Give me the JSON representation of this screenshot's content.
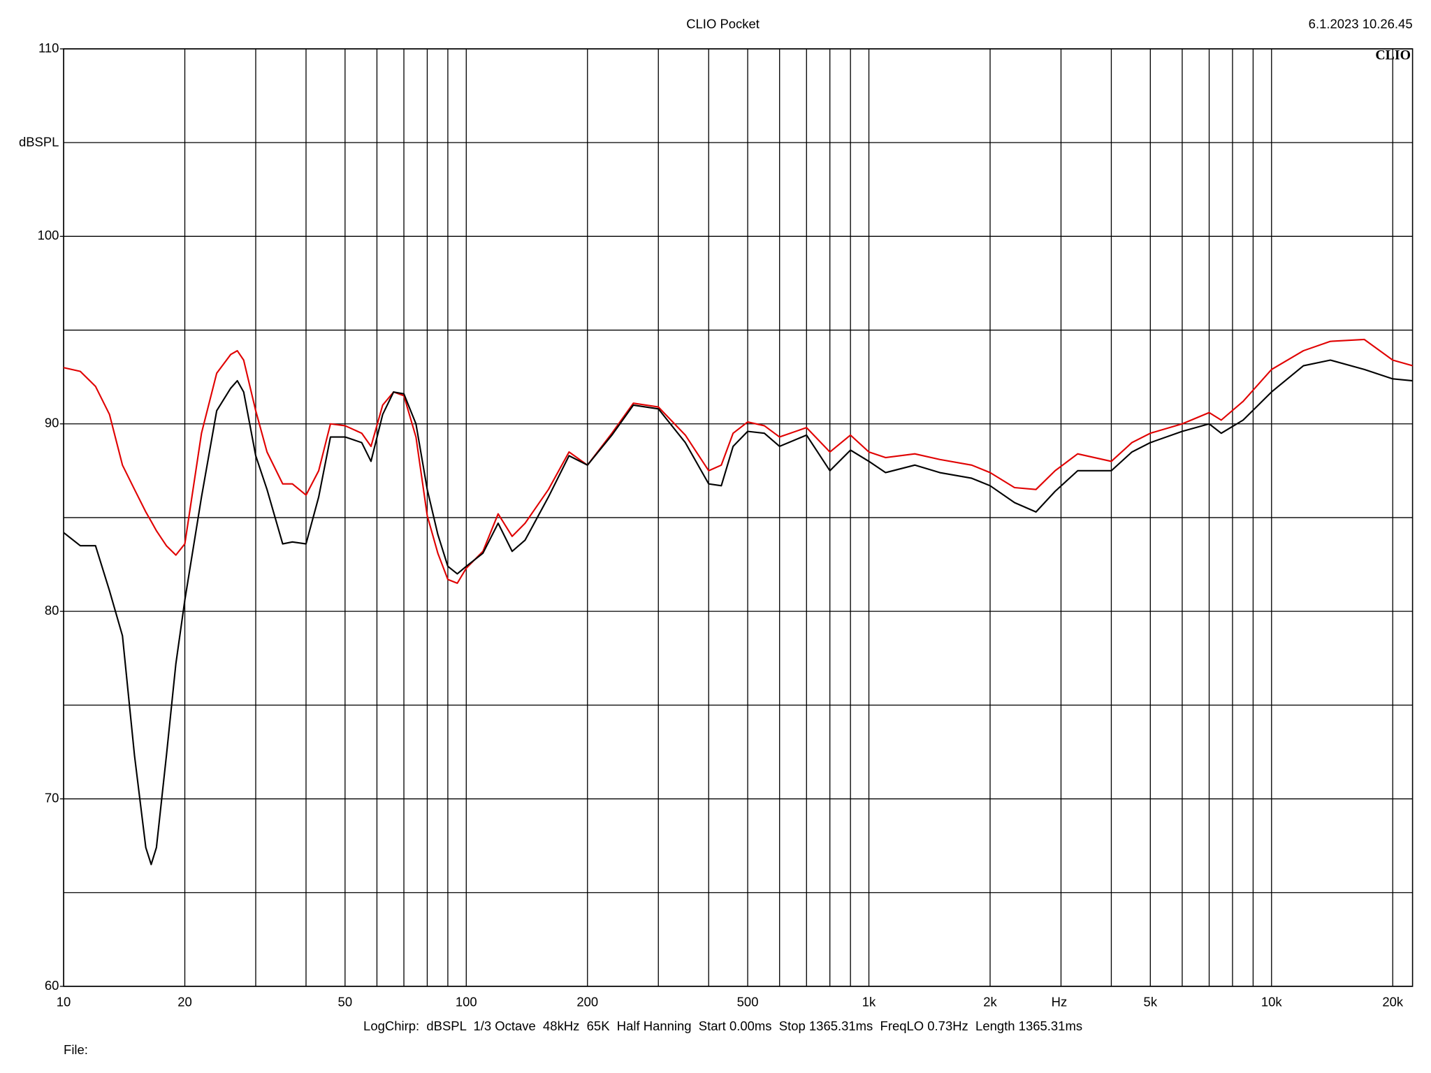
{
  "chart_data": {
    "type": "line",
    "title": "CLIO Pocket",
    "timestamp": "6.1.2023 10.26.45",
    "logo": "CLIO",
    "y_label": "dBSPL",
    "x_label": "Hz",
    "footer": "LogChirp:  dBSPL  1/3 Octave  48kHz  65K  Half Hanning  Start 0.00ms  Stop 1365.31ms  FreqLO 0.73Hz  Length 1365.31ms",
    "file_label": "File:",
    "xscale": "log",
    "grid": true,
    "xlim": [
      10,
      22400
    ],
    "ylim": [
      60,
      110
    ],
    "yticks": [
      60,
      70,
      80,
      90,
      100,
      110
    ],
    "yminor": [
      65,
      75,
      85,
      95,
      105
    ],
    "xticks": [
      10,
      20,
      50,
      100,
      200,
      500,
      {
        "value": 1000,
        "label": "1k"
      },
      {
        "value": 2000,
        "label": "2k"
      },
      {
        "value": 5000,
        "label": "5k"
      },
      {
        "value": 10000,
        "label": "10k"
      },
      {
        "value": 20000,
        "label": "20k"
      }
    ],
    "xminor": [
      30,
      40,
      60,
      70,
      80,
      90,
      300,
      400,
      600,
      700,
      800,
      900,
      3000,
      4000,
      6000,
      7000,
      8000,
      9000
    ],
    "x": [
      10,
      11,
      12,
      13,
      14,
      15,
      16,
      16.5,
      17,
      18,
      19,
      20,
      22,
      24,
      26,
      27,
      28,
      30,
      32,
      35,
      37,
      40,
      43,
      46,
      50,
      55,
      58,
      62,
      66,
      70,
      75,
      80,
      85,
      90,
      95,
      100,
      110,
      120,
      130,
      140,
      160,
      180,
      200,
      230,
      260,
      300,
      350,
      400,
      430,
      460,
      500,
      550,
      600,
      700,
      800,
      900,
      1000,
      1100,
      1300,
      1500,
      1800,
      2000,
      2300,
      2600,
      2900,
      3300,
      4000,
      4500,
      5000,
      6000,
      7000,
      7500,
      8500,
      10000,
      12000,
      14000,
      17000,
      20000,
      22400
    ],
    "series": [
      {
        "color": "#e00000",
        "values": [
          93.0,
          92.8,
          92.0,
          90.5,
          87.8,
          86.5,
          85.3,
          84.8,
          84.3,
          83.5,
          83.0,
          83.6,
          89.5,
          92.7,
          93.7,
          93.9,
          93.4,
          90.7,
          88.5,
          86.8,
          86.8,
          86.2,
          87.5,
          90.0,
          89.9,
          89.5,
          88.8,
          91.0,
          91.7,
          91.5,
          89.3,
          85.1,
          83.1,
          81.7,
          81.5,
          82.3,
          83.2,
          85.2,
          84.0,
          84.7,
          86.5,
          88.5,
          87.8,
          89.5,
          91.1,
          90.9,
          89.4,
          87.5,
          87.8,
          89.5,
          90.1,
          89.9,
          89.3,
          89.8,
          88.5,
          89.4,
          88.5,
          88.2,
          88.4,
          88.1,
          87.8,
          87.4,
          86.6,
          86.5,
          87.5,
          88.4,
          88.0,
          89.0,
          89.5,
          90.0,
          90.6,
          90.2,
          91.2,
          92.9,
          93.9,
          94.4,
          94.5,
          93.4,
          93.1
        ]
      },
      {
        "color": "#000000",
        "values": [
          84.2,
          83.5,
          83.5,
          81.1,
          78.7,
          72.3,
          67.4,
          66.5,
          67.4,
          72.3,
          77.2,
          80.6,
          86.1,
          90.7,
          91.9,
          92.3,
          91.7,
          88.3,
          86.5,
          83.6,
          83.7,
          83.6,
          86.1,
          89.3,
          89.3,
          89.0,
          88.0,
          90.5,
          91.7,
          91.6,
          90.0,
          86.5,
          84.1,
          82.4,
          82.0,
          82.4,
          83.1,
          84.7,
          83.2,
          83.8,
          86.1,
          88.3,
          87.8,
          89.4,
          91.0,
          90.8,
          89.0,
          86.8,
          86.7,
          88.8,
          89.6,
          89.5,
          88.8,
          89.4,
          87.5,
          88.6,
          88.0,
          87.4,
          87.8,
          87.4,
          87.1,
          86.7,
          85.8,
          85.3,
          86.4,
          87.5,
          87.5,
          88.5,
          89.0,
          89.6,
          90.0,
          89.5,
          90.2,
          91.7,
          93.1,
          93.4,
          92.9,
          92.4,
          92.3
        ]
      }
    ]
  }
}
